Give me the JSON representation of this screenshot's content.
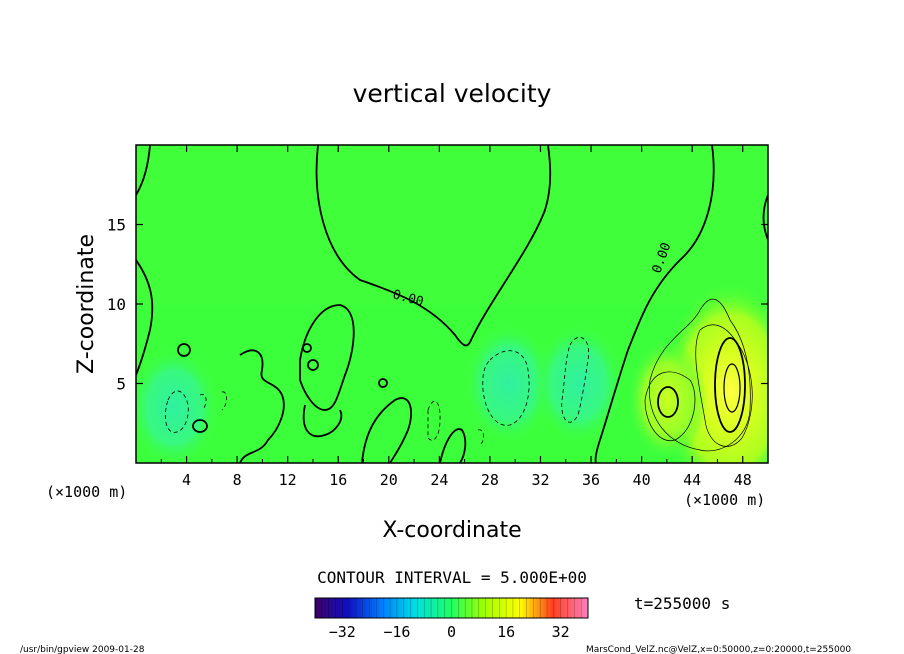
{
  "chart_data": {
    "type": "heatmap",
    "title": "vertical velocity",
    "xlabel": "X-coordinate",
    "ylabel": "Z-coordinate",
    "x_unit": "(×1000 m)",
    "z_unit": "(×1000 m)",
    "xlim": [
      0,
      50
    ],
    "ylim": [
      0,
      20
    ],
    "x_ticks": [
      4,
      8,
      12,
      16,
      20,
      24,
      28,
      32,
      36,
      40,
      44,
      48
    ],
    "y_ticks": [
      5,
      10,
      15
    ],
    "contour_label": "0.00",
    "contour_interval_text": "CONTOUR INTERVAL = 5.000E+00",
    "time_text": "t=255000 s",
    "colorbar": {
      "range": [
        -40,
        40
      ],
      "ticks": [
        -32,
        -16,
        0,
        16,
        32
      ],
      "colors": [
        "#3b0066",
        "#0000ff",
        "#00c0ff",
        "#00ff80",
        "#80ff00",
        "#ffff00",
        "#ff8000",
        "#ff0000",
        "#ff66cc"
      ]
    },
    "features": [
      {
        "kind": "updraft",
        "x": 47,
        "z": 4.5,
        "value": 18
      },
      {
        "kind": "updraft",
        "x": 42,
        "z": 4,
        "value": 10
      },
      {
        "kind": "downdraft",
        "x": 29.5,
        "z": 5,
        "value": -6
      },
      {
        "kind": "downdraft",
        "x": 35,
        "z": 5,
        "value": -4
      },
      {
        "kind": "downdraft",
        "x": 3,
        "z": 3.5,
        "value": -4
      }
    ]
  },
  "footer": {
    "left": "/usr/bin/gpview  2009-01-28",
    "right": "MarsCond_VelZ.nc@VelZ,x=0:50000,z=0:20000,t=255000"
  },
  "colors": {
    "background_field": "#3cff3c",
    "contour": "#000000"
  }
}
